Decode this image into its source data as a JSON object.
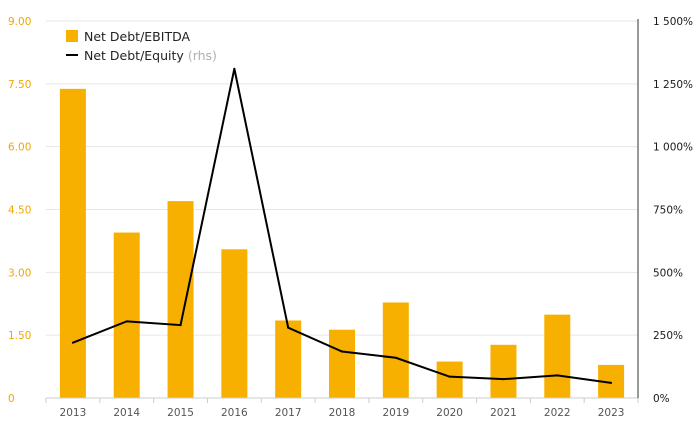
{
  "chart_data": {
    "type": "bar",
    "categories": [
      "2013",
      "2014",
      "2015",
      "2016",
      "2017",
      "2018",
      "2019",
      "2020",
      "2021",
      "2022",
      "2023"
    ],
    "series": [
      {
        "name": "Net Debt/EBITDA",
        "type": "bar",
        "axis": "left",
        "color": "#f7b000",
        "values": [
          7.38,
          3.95,
          4.7,
          3.55,
          1.85,
          1.63,
          2.28,
          0.87,
          1.27,
          1.99,
          0.79
        ]
      },
      {
        "name": "Net Debt/Equity",
        "name_suffix": "(rhs)",
        "type": "line",
        "axis": "right",
        "color": "#000000",
        "values": [
          220,
          305,
          290,
          1310,
          280,
          185,
          160,
          85,
          75,
          90,
          60
        ]
      }
    ],
    "y_left": {
      "ylim": [
        0,
        9
      ],
      "ticks": [
        0,
        1.5,
        3,
        4.5,
        6,
        7.5,
        9
      ],
      "tick_labels": [
        "0",
        "1.50",
        "3.00",
        "4.50",
        "6.00",
        "7.50",
        "9.00"
      ],
      "label_color": "#f0a800"
    },
    "y_right": {
      "ylim": [
        0,
        1500
      ],
      "ticks": [
        0,
        250,
        500,
        750,
        1000,
        1250,
        1500
      ],
      "tick_labels": [
        "0%",
        "250%",
        "500%",
        "750%",
        "1 000%",
        "1 250%",
        "1 500%"
      ]
    },
    "grid": true,
    "legend_position": "top-left"
  }
}
